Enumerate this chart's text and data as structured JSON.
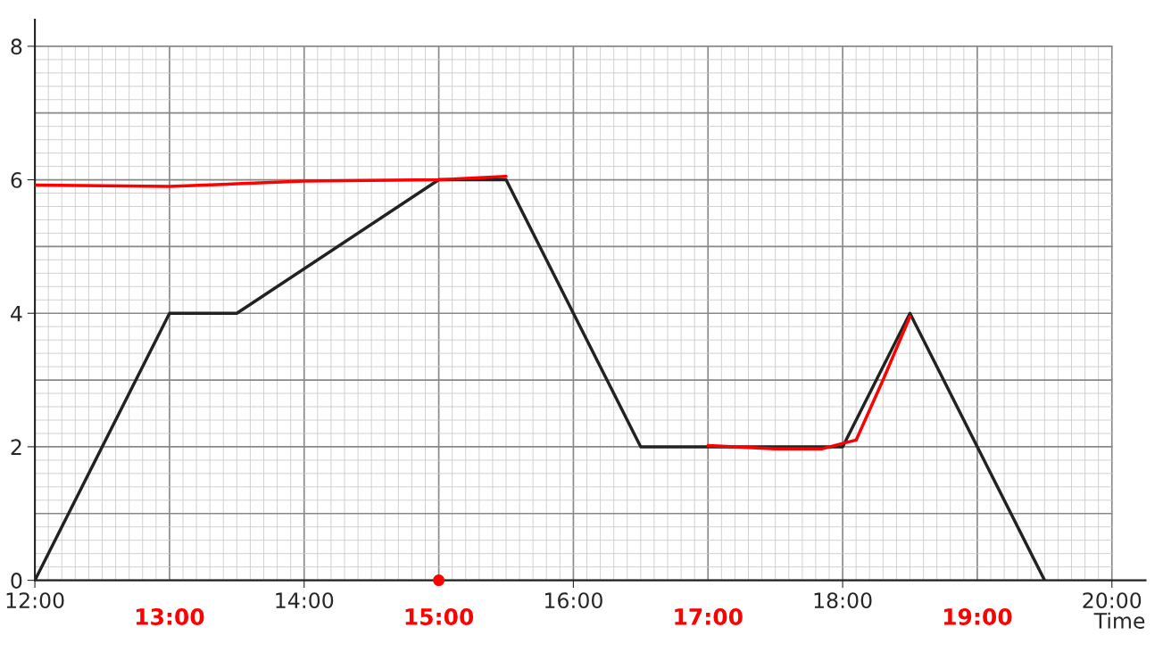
{
  "chart_data": {
    "type": "line",
    "xlabel": "Time",
    "xlim": [
      12,
      20.25
    ],
    "ylim": [
      0,
      8.4
    ],
    "xticks": [
      {
        "value": 12,
        "label": "12:00"
      },
      {
        "value": 14,
        "label": "14:00"
      },
      {
        "value": 16,
        "label": "16:00"
      },
      {
        "value": 18,
        "label": "18:00"
      },
      {
        "value": 20,
        "label": "20:00"
      }
    ],
    "yticks": [
      0,
      2,
      4,
      6,
      8
    ],
    "grid": true,
    "legend": false,
    "marker": "none",
    "line_style": "solid",
    "series": [
      {
        "color": "#222222",
        "x": [
          12,
          13,
          13.5,
          15,
          15.5,
          16.5,
          18,
          18.5,
          19.5
        ],
        "values": [
          0,
          4,
          4,
          6,
          6,
          2,
          2,
          4,
          0
        ]
      },
      {
        "color": "#ff0000",
        "x": [
          12,
          13,
          14,
          15,
          15.5
        ],
        "values": [
          5.92,
          5.9,
          5.98,
          6.0,
          6.05
        ]
      },
      {
        "color": "#ff0000",
        "x": [
          17,
          17.5,
          17.85,
          18,
          18.1,
          18.3,
          18.5
        ],
        "values": [
          2.02,
          1.97,
          1.97,
          2.05,
          2.1,
          3.0,
          3.95
        ]
      },
      {
        "type": "scatter",
        "color": "#ff0000",
        "marker": "circle",
        "x": [
          15
        ],
        "values": [
          0
        ]
      }
    ],
    "annotations": [
      "13:00",
      "15:00",
      "17:00",
      "19:00"
    ]
  }
}
